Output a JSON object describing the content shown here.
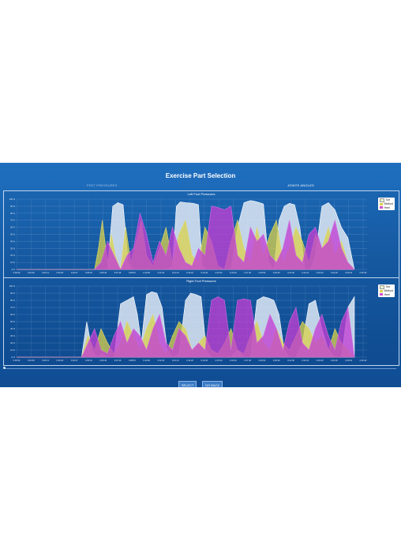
{
  "page_title": "Exercise Part Selection",
  "tabs": [
    {
      "label": "FEET PRESSURES",
      "active": false
    },
    {
      "label": "JOINTS ANGLES",
      "active": true
    }
  ],
  "legend": [
    {
      "label": "Toe",
      "color": "#e8f3d4"
    },
    {
      "label": "Midfoot",
      "color": "#d9d24a"
    },
    {
      "label": "Heel",
      "color": "#d24fd0"
    }
  ],
  "buttons": {
    "select": "SELECT",
    "go_back": "GO BACK"
  },
  "colors": {
    "background": "#165ca7",
    "toe": "#dfe9f5",
    "midfoot": "#d9d24a",
    "heel": "#c23fd3",
    "heel_dark": "#7a2bd6"
  },
  "chart_data": [
    {
      "type": "area",
      "title": "Left Foot Pressures",
      "ylim": [
        0,
        100
      ],
      "yticks": [
        "0 %",
        "10 %",
        "20 %",
        "30 %",
        "40 %",
        "50 %",
        "60 %",
        "70 %",
        "80 %",
        "90 %",
        "100 %"
      ],
      "xticks": [
        "0:00:00",
        "0:01:06",
        "0:02:13",
        "0:03:20",
        "0:04:27",
        "0:05:33",
        "0:06:40",
        "0:07:46",
        "0:08:53",
        "0:10:00",
        "0:11:06",
        "0:12:13",
        "0:13:20",
        "0:14:26",
        "0:15:33",
        "0:16:40",
        "0:17:46",
        "0:18:53",
        "0:20:00",
        "0:21:06",
        "0:22:13",
        "0:23:20",
        "0:24:26",
        "0:25:33",
        "0:26:40"
      ],
      "grid": true,
      "legend_position": "top-right",
      "series": [
        {
          "name": "Toe",
          "x": [
            0,
            6,
            7,
            7.4,
            7.8,
            8.2,
            8.6,
            9,
            9.5,
            10,
            10.5,
            11,
            11.6,
            12,
            12.3,
            12.6,
            13,
            13.6,
            14,
            14.3,
            14.6,
            15,
            15.5,
            16,
            16.5,
            17,
            17.5,
            18,
            18.3,
            18.7,
            19,
            19.4,
            19.8,
            20.2,
            20.6,
            21,
            21.4,
            21.8,
            22.2,
            22.6,
            23,
            23.5,
            24,
            24.5,
            25,
            25.5,
            26
          ],
          "y": [
            0,
            0,
            0,
            90,
            95,
            92,
            10,
            0,
            0,
            0,
            0,
            0,
            0,
            5,
            90,
            96,
            95,
            94,
            92,
            5,
            0,
            0,
            0,
            0,
            0,
            60,
            95,
            98,
            97,
            95,
            93,
            10,
            0,
            70,
            90,
            94,
            92,
            60,
            0,
            0,
            20,
            90,
            95,
            85,
            60,
            45,
            0
          ]
        },
        {
          "name": "Midfoot",
          "x": [
            0,
            6,
            6.3,
            6.6,
            7,
            7.3,
            7.6,
            8,
            8.4,
            8.8,
            9.2,
            9.6,
            10,
            10.5,
            11,
            11.5,
            12,
            12.5,
            13,
            13.5,
            14,
            14.5,
            15,
            15.5,
            16,
            16.5,
            17,
            17.5,
            18,
            18.5,
            19,
            19.5,
            20,
            20.5,
            21,
            21.5,
            22,
            22.5,
            23,
            23.5,
            24,
            24.5,
            25,
            25.5,
            26
          ],
          "y": [
            0,
            0,
            30,
            70,
            10,
            50,
            20,
            0,
            60,
            10,
            40,
            70,
            20,
            5,
            30,
            60,
            10,
            50,
            70,
            20,
            10,
            60,
            40,
            5,
            0,
            40,
            70,
            30,
            10,
            60,
            20,
            50,
            70,
            10,
            30,
            60,
            40,
            10,
            50,
            30,
            60,
            20,
            40,
            10,
            0
          ]
        },
        {
          "name": "Heel",
          "x": [
            0,
            6,
            6.5,
            7,
            7.5,
            8,
            8.5,
            9,
            9.5,
            10,
            10.5,
            11,
            11.5,
            12,
            12.5,
            13,
            13.5,
            14,
            14.5,
            15,
            15.5,
            16,
            16.5,
            17,
            17.5,
            18,
            18.5,
            19,
            19.5,
            20,
            20.5,
            21,
            21.5,
            22,
            22.5,
            23,
            23.5,
            24,
            24.5,
            25,
            25.5,
            26
          ],
          "y": [
            0,
            0,
            10,
            40,
            20,
            0,
            20,
            30,
            80,
            50,
            10,
            40,
            20,
            60,
            30,
            10,
            5,
            30,
            20,
            90,
            88,
            85,
            90,
            20,
            10,
            60,
            40,
            50,
            20,
            10,
            30,
            70,
            20,
            10,
            50,
            60,
            30,
            40,
            70,
            30,
            10,
            0
          ]
        }
      ]
    },
    {
      "type": "area",
      "title": "Right Foot Pressures",
      "ylim": [
        0,
        100
      ],
      "yticks": [
        "0 %",
        "10 %",
        "20 %",
        "30 %",
        "40 %",
        "50 %",
        "60 %",
        "70 %",
        "80 %",
        "90 %",
        "100 %"
      ],
      "xticks": [
        "0:00:00",
        "0:01:06",
        "0:02:13",
        "0:03:20",
        "0:04:27",
        "0:05:33",
        "0:06:40",
        "0:07:46",
        "0:08:53",
        "0:10:00",
        "0:11:06",
        "0:12:13",
        "0:13:20",
        "0:14:26",
        "0:15:33",
        "0:16:40",
        "0:17:46",
        "0:18:53",
        "0:20:00",
        "0:21:06",
        "0:22:13",
        "0:23:20",
        "0:24:26",
        "0:25:33",
        "0:26:40"
      ],
      "grid": true,
      "legend_position": "top-right",
      "series": [
        {
          "name": "Toe",
          "x": [
            0,
            5,
            5.4,
            5.8,
            6.2,
            6.6,
            7,
            7.5,
            8,
            8.5,
            9,
            9.3,
            9.6,
            10,
            10.4,
            10.8,
            11.2,
            11.6,
            12,
            12.5,
            13,
            13.4,
            13.8,
            14.2,
            14.6,
            15,
            15.5,
            16,
            16.5,
            17,
            17.5,
            18,
            18.5,
            19,
            19.4,
            19.8,
            20.2,
            20.6,
            21,
            21.5,
            22,
            22.5,
            23,
            23.5,
            24,
            24.5,
            25,
            25.5,
            26
          ],
          "y": [
            0,
            0,
            50,
            10,
            0,
            5,
            0,
            0,
            75,
            80,
            85,
            60,
            20,
            88,
            92,
            90,
            70,
            10,
            0,
            5,
            80,
            90,
            88,
            85,
            10,
            0,
            0,
            0,
            0,
            10,
            0,
            0,
            80,
            85,
            83,
            80,
            60,
            10,
            0,
            0,
            20,
            75,
            80,
            40,
            10,
            0,
            0,
            70,
            85
          ]
        },
        {
          "name": "Midfoot",
          "x": [
            0,
            5,
            5.5,
            6,
            6.5,
            7,
            7.5,
            8,
            8.5,
            9,
            9.5,
            10,
            10.5,
            11,
            11.5,
            12,
            12.5,
            13,
            13.5,
            14,
            14.5,
            15,
            15.5,
            16,
            16.5,
            17,
            17.5,
            18,
            18.5,
            19,
            19.5,
            20,
            20.5,
            21,
            21.5,
            22,
            22.5,
            23,
            23.5,
            24,
            24.5,
            25,
            25.5,
            26
          ],
          "y": [
            0,
            0,
            30,
            10,
            40,
            20,
            5,
            20,
            50,
            30,
            10,
            40,
            60,
            20,
            5,
            30,
            50,
            40,
            10,
            20,
            30,
            10,
            5,
            20,
            40,
            10,
            5,
            30,
            50,
            20,
            10,
            40,
            20,
            10,
            30,
            50,
            40,
            20,
            30,
            10,
            40,
            20,
            10,
            0
          ]
        },
        {
          "name": "Heel",
          "x": [
            0,
            5,
            5.5,
            6,
            6.5,
            7,
            7.5,
            8,
            8.5,
            9,
            9.5,
            10,
            10.5,
            11,
            11.5,
            12,
            12.5,
            13,
            13.5,
            14,
            14.5,
            15,
            15.5,
            16,
            16.5,
            17,
            17.5,
            18,
            18.5,
            19,
            19.5,
            20,
            20.5,
            21,
            21.5,
            22,
            22.5,
            23,
            23.5,
            24,
            24.5,
            25,
            25.5,
            26
          ],
          "y": [
            0,
            0,
            20,
            40,
            10,
            5,
            30,
            50,
            20,
            40,
            30,
            10,
            40,
            60,
            20,
            10,
            40,
            30,
            10,
            20,
            10,
            80,
            85,
            80,
            10,
            80,
            82,
            80,
            20,
            30,
            60,
            40,
            10,
            50,
            70,
            20,
            10,
            40,
            60,
            30,
            10,
            50,
            70,
            0
          ]
        }
      ]
    }
  ]
}
